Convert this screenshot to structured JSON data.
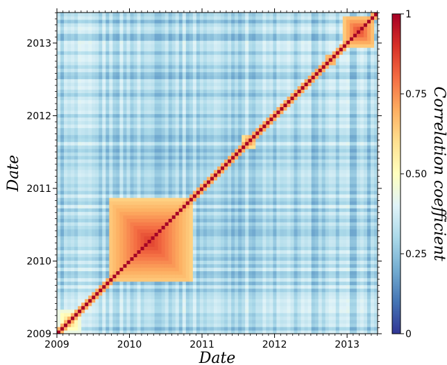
{
  "chart_data": {
    "type": "heatmap",
    "xlabel": "Date",
    "ylabel": "Date",
    "x_ticks": [
      "2009",
      "2010",
      "2011",
      "2012",
      "2013"
    ],
    "y_ticks": [
      "2009",
      "2010",
      "2011",
      "2012",
      "2013"
    ],
    "xlim": [
      2009.0,
      2013.42
    ],
    "ylim": [
      2009.0,
      2013.42
    ],
    "colorbar": {
      "label": "Correlation coefficient",
      "range": [
        0,
        1
      ],
      "ticks": [
        "0",
        "0.25",
        "0.50",
        "0.75",
        "1"
      ],
      "tick_values": [
        0,
        0.25,
        0.5,
        0.75,
        1.0
      ],
      "colormap": "RdYlBu_r",
      "colors": [
        "#313695",
        "#4575b4",
        "#74add1",
        "#abd9e9",
        "#e0f3f8",
        "#ffffbf",
        "#fee090",
        "#fdae61",
        "#f46d43",
        "#d73027",
        "#a50026"
      ]
    },
    "background_correlation": 0.3,
    "diagonal_value": 1.0,
    "high_correlation_blocks": [
      {
        "start": 2009.0,
        "end": 2009.35,
        "value": 0.65
      },
      {
        "start": 2009.7,
        "end": 2010.85,
        "value": 0.88
      },
      {
        "start": 2011.55,
        "end": 2011.75,
        "value": 0.8
      },
      {
        "start": 2012.7,
        "end": 2012.85,
        "value": 0.85
      },
      {
        "start": 2012.95,
        "end": 2013.38,
        "value": 0.88
      }
    ]
  }
}
